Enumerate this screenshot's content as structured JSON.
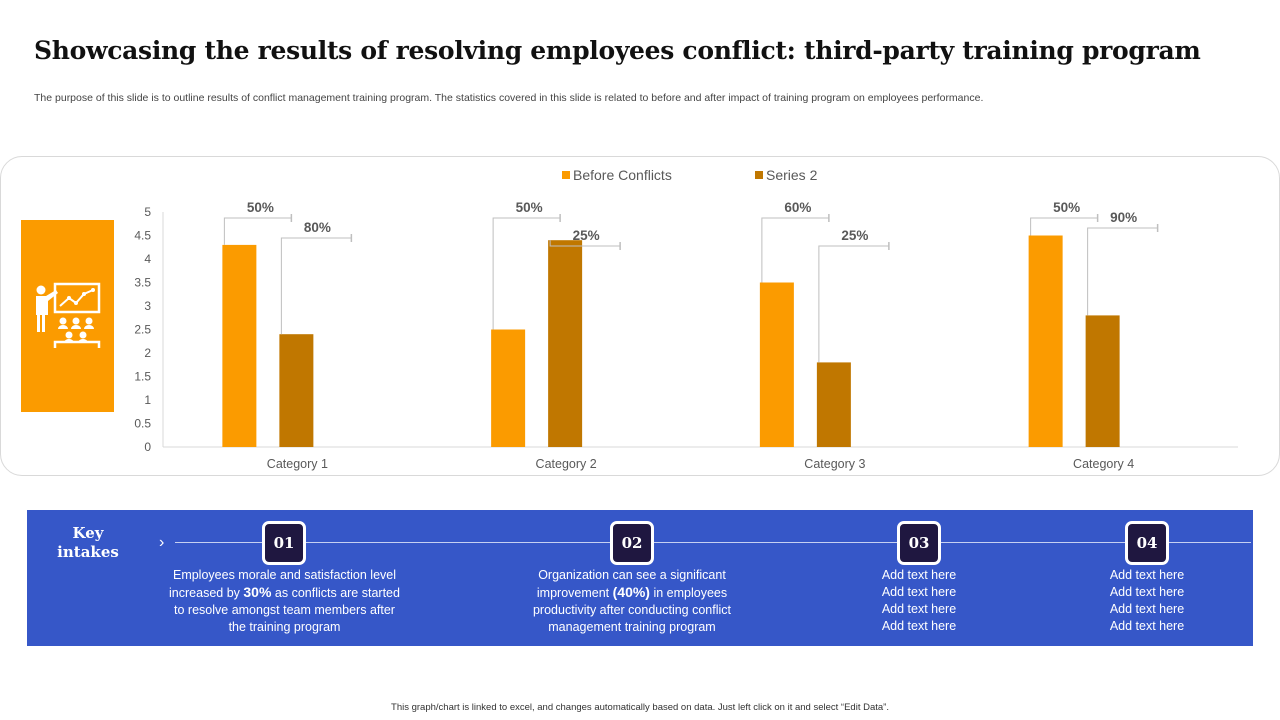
{
  "header": {
    "title": "Showcasing the results of resolving employees conflict: third-party training program",
    "subtitle": "The purpose of this slide is to outline results of conflict management training program. The statistics covered in this slide is related to before and after impact of training program on employees performance."
  },
  "icon": {
    "name": "presentation-training-icon",
    "box_color": "#fb9b00"
  },
  "chart_data": {
    "type": "bar",
    "title": "",
    "xlabel": "",
    "ylabel": "",
    "ylim": [
      0,
      5
    ],
    "yticks": [
      "0",
      "0.5",
      "1",
      "1.5",
      "2",
      "2.5",
      "3",
      "3.5",
      "4",
      "4.5",
      "5"
    ],
    "categories": [
      "Category 1",
      "Category 2",
      "Category 3",
      "Category 4"
    ],
    "series": [
      {
        "name": "Before Conflicts",
        "color": "#fb9b00",
        "values": [
          4.3,
          2.5,
          3.5,
          4.5
        ],
        "labels": [
          "50%",
          "50%",
          "60%",
          "50%"
        ]
      },
      {
        "name": "Series 2",
        "color": "#c07700",
        "values": [
          2.4,
          4.4,
          1.8,
          2.8
        ],
        "labels": [
          "80%",
          "25%",
          "25%",
          "90%"
        ]
      }
    ],
    "legend": "top-center",
    "grid": false
  },
  "intakes": {
    "title": "Key intakes",
    "steps": [
      {
        "number": "01",
        "text_parts": [
          "Employees morale and satisfaction level increased by ",
          "30%",
          " as conflicts are started to resolve amongst team members after the training program"
        ]
      },
      {
        "number": "02",
        "text_parts": [
          "Organization can see a significant improvement ",
          "(40%)",
          " in employees productivity after conducting conflict management training program"
        ]
      },
      {
        "number": "03",
        "lines": [
          "Add text here",
          "Add text here",
          "Add text here",
          "Add text here"
        ]
      },
      {
        "number": "04",
        "lines": [
          "Add text here",
          "Add text here",
          "Add text here",
          "Add text here"
        ]
      }
    ]
  },
  "footer": {
    "note": "This graph/chart is linked to excel, and changes automatically based on data. Just left click on it and select “Edit Data”."
  }
}
